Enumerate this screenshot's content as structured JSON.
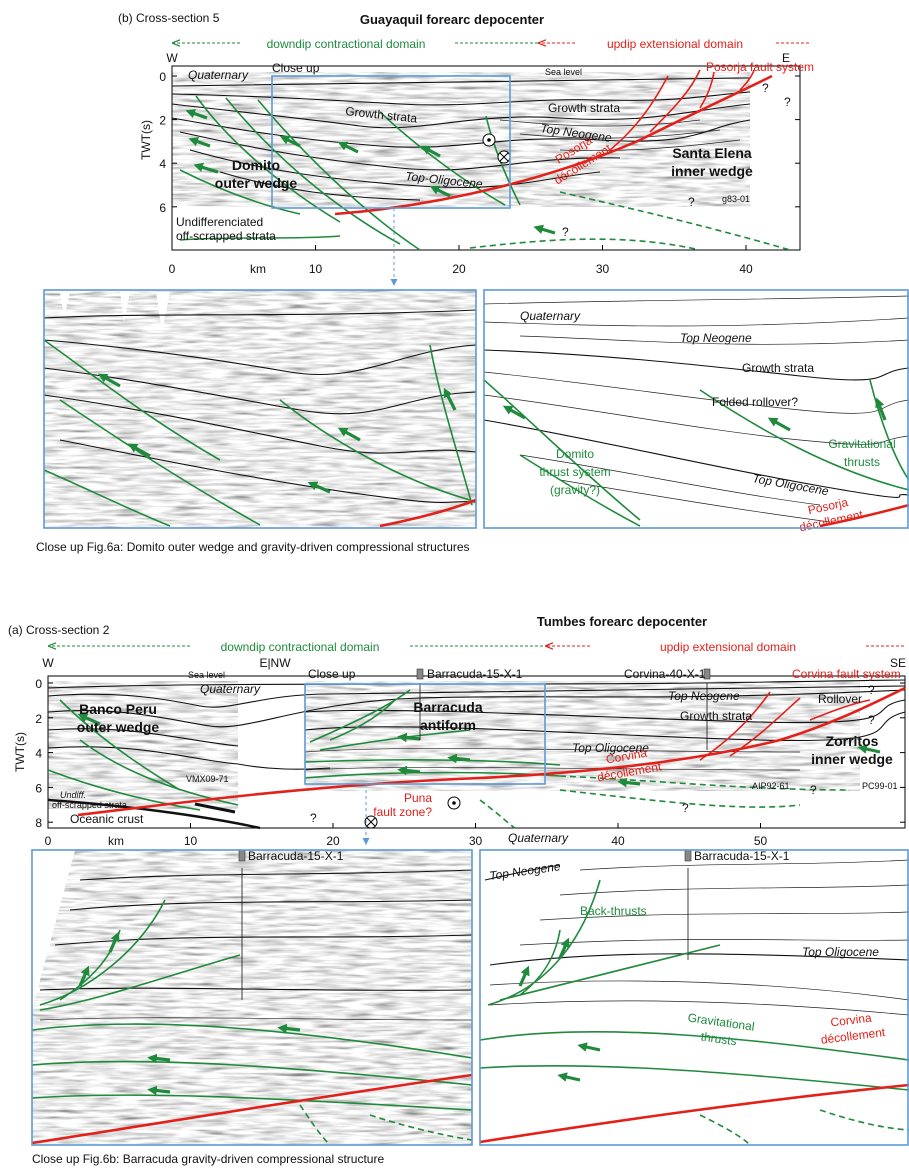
{
  "section_b": {
    "title": "(b) Cross-section 5",
    "depocenter": "Guayaquil forearc depocenter",
    "downdip": "downdip contractional domain",
    "updip": "updip extensional domain",
    "west": "W",
    "east": "E",
    "y_label": "TWT(s)",
    "x_unit": "km",
    "x_ticks": [
      0,
      10,
      20,
      30,
      40
    ],
    "y_ticks": [
      0,
      2,
      4,
      6
    ],
    "labels": {
      "close_up": "Close up",
      "sea_level": "Sea level",
      "quaternary": "Quaternary",
      "fault_system": "Posorja fault system",
      "growth_strata": [
        "Growth strata",
        "Growth strata"
      ],
      "top_neogene": "Top Neogene",
      "top_oligocene": "Top-Oligocene",
      "outer_wedge": [
        "Domito",
        "outer wedge"
      ],
      "inner_wedge": [
        "Santa Elena",
        "inner wedge"
      ],
      "decollement": [
        "Posorja",
        "décollement"
      ],
      "undifferentiated": [
        "Undifferenciated",
        "off-scrapped strata"
      ],
      "line_id": "g83-01",
      "question_marks": [
        "?",
        "?",
        "?",
        "?"
      ]
    }
  },
  "closeup_b": {
    "labels": {
      "quaternary": "Quaternary",
      "top_neogene": "Top Neogene",
      "growth_strata": "Growth strata",
      "rollover": "Folded rollover?",
      "thrust_system": [
        "Domito",
        "thrust system",
        "(gravity?)"
      ],
      "gravitational_thrusts": [
        "Gravitational",
        "thrusts"
      ],
      "top_oligocene": "Top Oligocene",
      "decollement": [
        "Posorja",
        "décollement"
      ]
    },
    "caption": "Close up Fig.6a: Domito outer wedge and gravity-driven compressional structures"
  },
  "section_a": {
    "title": "(a) Cross-section 2",
    "depocenter": "Tumbes forearc depocenter",
    "downdip": "downdip contractional domain",
    "updip": "updip extensional domain",
    "west": "W",
    "boundary": "E|NW",
    "southeast": "SE",
    "y_label": "TWT(s)",
    "x_unit": "km",
    "x_ticks": [
      0,
      10,
      20,
      30,
      40,
      50
    ],
    "y_ticks": [
      0,
      2,
      4,
      6,
      8
    ],
    "labels": {
      "sea_level": "Sea level",
      "quaternary": "Quaternary",
      "close_up": "Close up",
      "well_1": "Barracuda-15-X-1",
      "well_2": "Corvina-40-X-1",
      "fault_system": "Corvina fault system",
      "top_neogene": "Top Neogene",
      "growth_strata": "Growth strata",
      "rollover": "Rollover",
      "outer_wedge": [
        "Banco Peru",
        "outer wedge"
      ],
      "antiform": [
        "Barracuda",
        "antiform"
      ],
      "top_oligocene": "Top Oligocene",
      "inner_wedge": [
        "Zorritos",
        "inner wedge"
      ],
      "decollement": [
        "Corvina",
        "décollement"
      ],
      "line_1": "VMX09-71",
      "undifferentiated": [
        "Undiff.",
        "off-scrapped strata"
      ],
      "oceanic_crust": "Oceanic crust",
      "puna": [
        "Puna",
        "fault zone?"
      ],
      "line_2": "AIP92-61",
      "line_3": "PC99-01",
      "question_marks": [
        "?",
        "?",
        "?",
        "?",
        "?"
      ]
    }
  },
  "closeup_a": {
    "labels": {
      "well_left": "Barracuda-15-X-1",
      "quaternary": "Quaternary",
      "well_right": "Barracuda-15-X-1",
      "top_neogene": "Top Neogene",
      "back_thrusts": "Back-thrusts",
      "top_oligocene": "Top Oligocene",
      "gravitational_thrusts": [
        "Gravitational",
        "thrusts"
      ],
      "decollement": [
        "Corvina",
        "décollement"
      ]
    },
    "caption": "Close up Fig.6b: Barracuda gravity-driven compressional structure"
  }
}
